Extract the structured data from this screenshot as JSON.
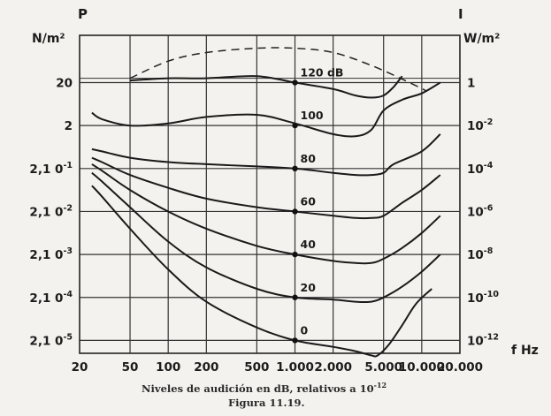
{
  "chart_data": {
    "type": "line",
    "title": "",
    "caption": "Niveles de audición en dB, relativos a 10",
    "caption_exponent": "-12",
    "figure_label": "Figura 11.19.",
    "x_unit": "f Hz",
    "x_scale": "log",
    "x_ticks": [
      {
        "value": 20,
        "label": "20"
      },
      {
        "value": 50,
        "label": "50"
      },
      {
        "value": 100,
        "label": "100"
      },
      {
        "value": 200,
        "label": "200"
      },
      {
        "value": 500,
        "label": "500"
      },
      {
        "value": 1000,
        "label": "1.000"
      },
      {
        "value": 2000,
        "label": "2.000"
      },
      {
        "value": 5000,
        "label": "5.000"
      },
      {
        "value": 10000,
        "label": "10.000"
      },
      {
        "value": 20000,
        "label": "20.000"
      }
    ],
    "xlim": [
      20,
      20000
    ],
    "left_axis": {
      "symbol": "P",
      "unit": "N/m²",
      "ticks": [
        {
          "db": 120,
          "label": "20"
        },
        {
          "db": 100,
          "label": "2"
        },
        {
          "db": 80,
          "label": "2,1 0",
          "exp": "-1"
        },
        {
          "db": 60,
          "label": "2,1 0",
          "exp": "-2"
        },
        {
          "db": 40,
          "label": "2,1 0",
          "exp": "-3"
        },
        {
          "db": 20,
          "label": "2,1 0",
          "exp": "-4"
        },
        {
          "db": 0,
          "label": "2,1 0",
          "exp": "-5"
        }
      ]
    },
    "right_axis": {
      "symbol": "I",
      "unit": "W/m²",
      "ticks": [
        {
          "db": 120,
          "label": "1"
        },
        {
          "db": 100,
          "label": "10",
          "exp": "-2"
        },
        {
          "db": 80,
          "label": "10",
          "exp": "-4"
        },
        {
          "db": 60,
          "label": "10",
          "exp": "-6"
        },
        {
          "db": 40,
          "label": "10",
          "exp": "-8"
        },
        {
          "db": 20,
          "label": "10",
          "exp": "-10"
        },
        {
          "db": 0,
          "label": "10",
          "exp": "-12"
        }
      ]
    },
    "ylim_db": [
      -6,
      142
    ],
    "grid": true,
    "series": [
      {
        "name": "120 dB",
        "label_db": 120,
        "label_text": "120 dB",
        "points": [
          [
            50,
            121
          ],
          [
            100,
            122
          ],
          [
            200,
            122
          ],
          [
            500,
            123
          ],
          [
            1000,
            120
          ],
          [
            2000,
            117
          ],
          [
            3000,
            114
          ],
          [
            4000,
            113
          ],
          [
            5000,
            114
          ],
          [
            6000,
            118
          ],
          [
            7000,
            123
          ]
        ]
      },
      {
        "name": "100",
        "label_db": 100,
        "label_text": "100",
        "points": [
          [
            25,
            106
          ],
          [
            30,
            103
          ],
          [
            50,
            100
          ],
          [
            100,
            101
          ],
          [
            200,
            104
          ],
          [
            500,
            105
          ],
          [
            1000,
            101
          ],
          [
            2000,
            96
          ],
          [
            3000,
            95
          ],
          [
            4000,
            98
          ],
          [
            5000,
            107
          ],
          [
            7000,
            112
          ],
          [
            10000,
            115
          ],
          [
            14000,
            120
          ]
        ]
      },
      {
        "name": "80",
        "label_db": 80,
        "label_text": "80",
        "points": [
          [
            25,
            89
          ],
          [
            30,
            88
          ],
          [
            50,
            85
          ],
          [
            100,
            83
          ],
          [
            200,
            82
          ],
          [
            500,
            81
          ],
          [
            1000,
            80
          ],
          [
            2000,
            78
          ],
          [
            3000,
            77
          ],
          [
            4000,
            77
          ],
          [
            5000,
            78
          ],
          [
            6000,
            82
          ],
          [
            10000,
            88
          ],
          [
            14000,
            96
          ]
        ]
      },
      {
        "name": "60",
        "label_db": 60,
        "label_text": "60",
        "points": [
          [
            25,
            85
          ],
          [
            30,
            83
          ],
          [
            50,
            77
          ],
          [
            100,
            71
          ],
          [
            200,
            66
          ],
          [
            500,
            62
          ],
          [
            1000,
            60
          ],
          [
            2000,
            58
          ],
          [
            3000,
            57
          ],
          [
            4000,
            57
          ],
          [
            5000,
            58
          ],
          [
            7000,
            64
          ],
          [
            10000,
            70
          ],
          [
            14000,
            77
          ]
        ]
      },
      {
        "name": "40",
        "label_db": 40,
        "label_text": "40",
        "points": [
          [
            25,
            82
          ],
          [
            30,
            79
          ],
          [
            50,
            70
          ],
          [
            100,
            60
          ],
          [
            200,
            52
          ],
          [
            500,
            44
          ],
          [
            1000,
            40
          ],
          [
            2000,
            37
          ],
          [
            3000,
            36
          ],
          [
            4000,
            36
          ],
          [
            5000,
            38
          ],
          [
            7000,
            43
          ],
          [
            10000,
            50
          ],
          [
            14000,
            58
          ]
        ]
      },
      {
        "name": "20",
        "label_db": 20,
        "label_text": "20",
        "points": [
          [
            25,
            78
          ],
          [
            30,
            74
          ],
          [
            50,
            62
          ],
          [
            100,
            46
          ],
          [
            200,
            34
          ],
          [
            500,
            24
          ],
          [
            1000,
            20
          ],
          [
            2000,
            19
          ],
          [
            3000,
            18
          ],
          [
            4000,
            18
          ],
          [
            5000,
            20
          ],
          [
            7000,
            25
          ],
          [
            10000,
            32
          ],
          [
            14000,
            40
          ]
        ]
      },
      {
        "name": "0",
        "label_db": 0,
        "label_text": "0",
        "points": [
          [
            25,
            72
          ],
          [
            30,
            67
          ],
          [
            50,
            52
          ],
          [
            100,
            33
          ],
          [
            200,
            18
          ],
          [
            500,
            6
          ],
          [
            1000,
            0
          ],
          [
            2000,
            -3
          ],
          [
            3000,
            -5
          ],
          [
            4000,
            -7
          ],
          [
            4500,
            -7
          ],
          [
            5500,
            -2
          ],
          [
            7000,
            7
          ],
          [
            9000,
            17
          ],
          [
            12000,
            24
          ]
        ]
      }
    ],
    "dashed_envelope": {
      "name": "",
      "points": [
        [
          50,
          122
        ],
        [
          100,
          130
        ],
        [
          200,
          134
        ],
        [
          500,
          136
        ],
        [
          1000,
          136
        ],
        [
          2000,
          134
        ],
        [
          4000,
          128
        ],
        [
          8000,
          120
        ],
        [
          11000,
          116
        ]
      ]
    }
  }
}
